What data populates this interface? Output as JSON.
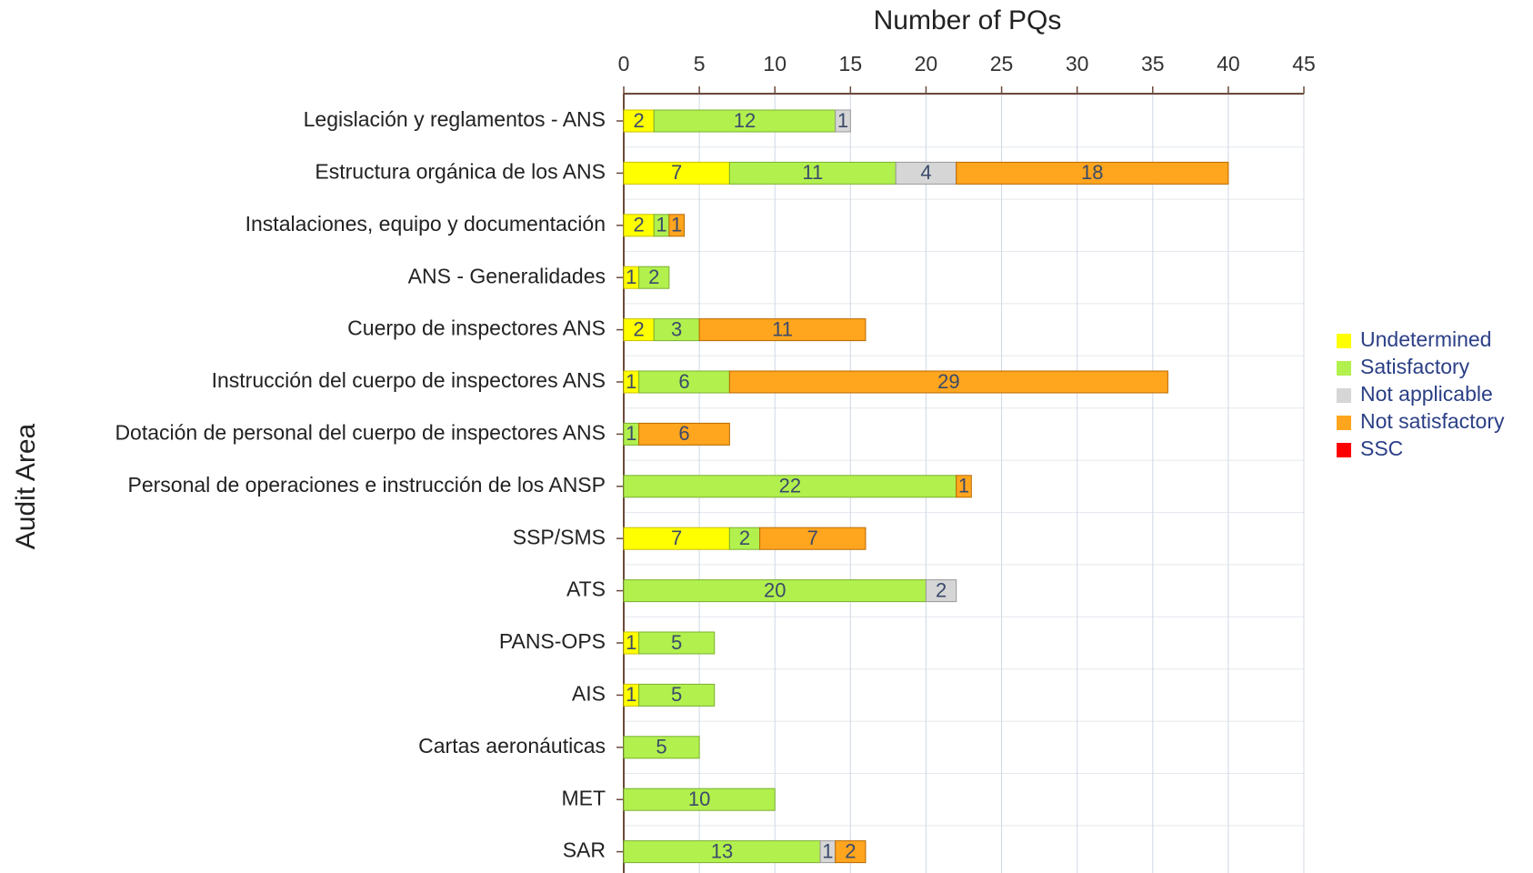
{
  "chart_data": {
    "type": "stacked-bar-horizontal",
    "title": "Number of PQs",
    "y_label": "Audit Area",
    "categories": [
      "Legislación y reglamentos - ANS",
      "Estructura orgánica de los ANS",
      "Instalaciones, equipo y documentación",
      "ANS - Generalidades",
      "Cuerpo de inspectores ANS",
      "Instrucción del cuerpo de inspectores ANS",
      "Dotación de personal del cuerpo de inspectores ANS",
      "Personal de operaciones e instrucción de los ANSP",
      "SSP/SMS",
      "ATS",
      "PANS-OPS",
      "AIS",
      "Cartas aeronáuticas",
      "MET",
      "SAR"
    ],
    "series": [
      {
        "name": "Undetermined",
        "color": "#ffff00",
        "values": [
          2,
          7,
          2,
          1,
          2,
          1,
          null,
          null,
          7,
          null,
          1,
          1,
          null,
          null,
          null
        ]
      },
      {
        "name": "Satisfactory",
        "color": "#b2f04e",
        "values": [
          12,
          11,
          1,
          2,
          3,
          6,
          1,
          22,
          2,
          20,
          5,
          5,
          5,
          10,
          13
        ]
      },
      {
        "name": "Not applicable",
        "color": "#d6d6d6",
        "values": [
          1,
          4,
          null,
          null,
          null,
          null,
          null,
          null,
          null,
          2,
          null,
          null,
          null,
          null,
          1
        ]
      },
      {
        "name": "Not satisfactory",
        "color": "#ffa51e",
        "values": [
          null,
          18,
          1,
          null,
          11,
          29,
          6,
          1,
          7,
          null,
          null,
          null,
          null,
          null,
          2
        ]
      },
      {
        "name": "SSC",
        "color": "#ff0000",
        "values": [
          null,
          null,
          null,
          null,
          null,
          null,
          null,
          null,
          null,
          null,
          null,
          null,
          null,
          null,
          null
        ]
      }
    ],
    "xlim": [
      0,
      45
    ],
    "xticks": [
      0,
      5,
      10,
      15,
      20,
      25,
      30,
      35,
      40,
      45
    ],
    "grid": true,
    "legend": "right"
  }
}
